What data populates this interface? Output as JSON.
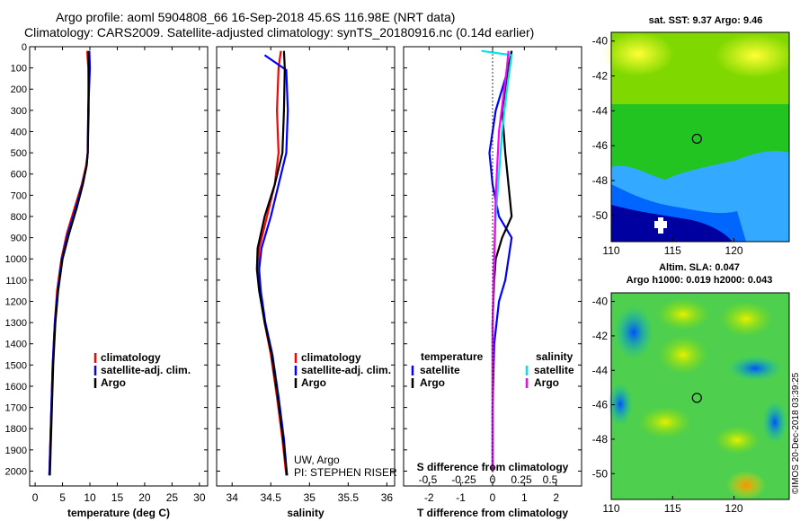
{
  "header": {
    "line1": "Argo profile: aoml 5904808_66 16-Sep-2018 45.6S 116.98E (NRT data)",
    "line2": "Climatology: CARS2009. Satellite-adjusted climatology: synTS_20180916.nc (0.14d earlier)"
  },
  "colors": {
    "climatology": "#ff0000",
    "satellite": "#0000ff",
    "argo": "#000000",
    "salinity_sat": "#00e5e5",
    "salinity_argo": "#ff00ff"
  },
  "chart_data": [
    {
      "type": "line",
      "name": "temperature-profile",
      "xlabel": "temperature (deg C)",
      "ylabel": "",
      "xlim": [
        -1,
        31.5
      ],
      "ylim": [
        2070,
        0
      ],
      "xticks": [
        "0",
        "5",
        "10",
        "15",
        "20",
        "25",
        "30"
      ],
      "yticks": [
        "0",
        "100",
        "200",
        "300",
        "400",
        "500",
        "600",
        "700",
        "800",
        "900",
        "1000",
        "1100",
        "1200",
        "1300",
        "1400",
        "1500",
        "1600",
        "1700",
        "1800",
        "1900",
        "2000"
      ],
      "legend": {
        "items": [
          "climatology",
          "satellite-adj. clim.",
          "Argo"
        ],
        "placement": "lower-right"
      },
      "series": [
        {
          "name": "climatology",
          "color": "#ff0000",
          "x": [
            9.5,
            9.7,
            9.8,
            9.6,
            9.3,
            8.5,
            7.2,
            5.8,
            4.8,
            4.0,
            3.6,
            3.2,
            2.9,
            2.6
          ],
          "y": [
            20,
            100,
            300,
            500,
            560,
            650,
            760,
            880,
            1000,
            1150,
            1300,
            1500,
            1750,
            2020
          ]
        },
        {
          "name": "satellite-adj. clim.",
          "color": "#0000ff",
          "x": [
            9.9,
            10.0,
            9.7,
            9.6,
            9.4,
            8.6,
            7.4,
            6.0,
            4.9,
            4.1,
            3.6,
            3.2,
            2.9,
            2.6
          ],
          "y": [
            20,
            100,
            300,
            500,
            560,
            650,
            760,
            880,
            1000,
            1150,
            1300,
            1500,
            1750,
            2020
          ]
        },
        {
          "name": "Argo",
          "color": "#000000",
          "x": [
            9.7,
            9.8,
            9.7,
            9.6,
            9.4,
            8.7,
            7.6,
            6.2,
            5.0,
            4.2,
            3.7,
            3.3,
            3.0,
            2.7
          ],
          "y": [
            20,
            100,
            300,
            500,
            560,
            650,
            760,
            880,
            1000,
            1150,
            1300,
            1500,
            1750,
            2020
          ]
        }
      ]
    },
    {
      "type": "line",
      "name": "salinity-profile",
      "xlabel": "salinity",
      "xlim": [
        33.8,
        36.1
      ],
      "ylim": [
        2070,
        0
      ],
      "xticks": [
        "34",
        "34.5",
        "35",
        "35.5",
        "36"
      ],
      "legend": {
        "items": [
          "climatology",
          "satellite-adj. clim.",
          "Argo"
        ],
        "placement": "lower-right"
      },
      "annotation": [
        "UW, Argo",
        "PI: STEPHEN RISER"
      ],
      "series": [
        {
          "name": "climatology",
          "color": "#ff0000",
          "x": [
            34.63,
            34.6,
            34.58,
            34.6,
            34.55,
            34.45,
            34.35,
            34.33,
            34.36,
            34.42,
            34.5,
            34.58,
            34.65,
            34.7
          ],
          "y": [
            20,
            100,
            300,
            500,
            650,
            800,
            950,
            1050,
            1150,
            1300,
            1450,
            1650,
            1850,
            2020
          ]
        },
        {
          "name": "satellite-adj. clim.",
          "color": "#0000ff",
          "x": [
            34.42,
            34.7,
            34.72,
            34.7,
            34.6,
            34.5,
            34.38,
            34.35,
            34.37,
            34.43,
            34.52,
            34.6,
            34.67,
            34.71
          ],
          "y": [
            40,
            110,
            300,
            500,
            650,
            800,
            950,
            1050,
            1150,
            1300,
            1450,
            1650,
            1850,
            2020
          ]
        },
        {
          "name": "Argo",
          "color": "#000000",
          "x": [
            34.67,
            34.68,
            34.67,
            34.65,
            34.55,
            34.42,
            34.33,
            34.32,
            34.35,
            34.42,
            34.51,
            34.59,
            34.66,
            34.71
          ],
          "y": [
            20,
            100,
            300,
            500,
            650,
            800,
            950,
            1050,
            1150,
            1300,
            1450,
            1650,
            1850,
            2020
          ]
        }
      ]
    },
    {
      "type": "line",
      "name": "difference-profile",
      "xlabel": "T difference from climatology",
      "xlabel_top": "S difference from climatology",
      "xlim": [
        -2.8,
        2.8
      ],
      "ylim": [
        2070,
        0
      ],
      "xticks": [
        "-2",
        "-1",
        "0",
        "1",
        "2"
      ],
      "xticks_top": [
        "-0.5",
        "-0.25",
        "0",
        "0.25",
        "0.5"
      ],
      "legend": {
        "temperature_title": "temperature",
        "salinity_title": "salinity",
        "items": [
          "satellite",
          "Argo",
          "satellite",
          "Argo"
        ]
      },
      "series": [
        {
          "name": "T satellite",
          "color": "#0000ff",
          "x": [
            0.6,
            0.5,
            0.1,
            -0.1,
            0.0,
            0.2,
            0.6,
            0.5,
            0.4,
            0.2,
            0.05,
            0.0,
            0.0
          ],
          "y": [
            20,
            100,
            300,
            500,
            650,
            800,
            900,
            1000,
            1100,
            1200,
            1400,
            1700,
            2000
          ]
        },
        {
          "name": "T Argo",
          "color": "#000000",
          "x": [
            0.6,
            0.5,
            0.3,
            0.4,
            0.5,
            0.6,
            0.3,
            0.1,
            0.05,
            0.0,
            0.0,
            0.0
          ],
          "y": [
            20,
            100,
            300,
            500,
            650,
            800,
            900,
            1000,
            1100,
            1300,
            1600,
            2000
          ]
        },
        {
          "name": "S satellite",
          "color": "#00e5e5",
          "x": [
            -0.35,
            0.6,
            0.45,
            0.3,
            0.2,
            0.1,
            0.05,
            0.0,
            0.0,
            0.0
          ],
          "y": [
            20,
            40,
            200,
            400,
            600,
            800,
            1000,
            1300,
            1600,
            2000
          ]
        },
        {
          "name": "S Argo",
          "color": "#ff00ff",
          "x": [
            0.5,
            0.45,
            0.2,
            0.1,
            0.05,
            0.0,
            0.0,
            0.0
          ],
          "y": [
            20,
            100,
            400,
            700,
            1000,
            1300,
            1600,
            2000
          ]
        }
      ]
    },
    {
      "type": "heatmap",
      "name": "sst-map",
      "title": "sat. SST: 9.37 Argo: 9.46",
      "xticks": [
        "110",
        "115",
        "120"
      ],
      "yticks": [
        "-40",
        "-42",
        "-44",
        "-46",
        "-48",
        "-50"
      ],
      "xlim": [
        110,
        124.5
      ],
      "ylim": [
        -51.5,
        -39.5
      ],
      "marker": {
        "lon": 116.98,
        "lat": -45.6
      }
    },
    {
      "type": "heatmap",
      "name": "sla-map",
      "title_line1": "Altim. SLA: 0.047",
      "title_line2": "Argo h1000: 0.019 h2000: 0.043",
      "xticks": [
        "110",
        "115",
        "120"
      ],
      "yticks": [
        "-40",
        "-42",
        "-44",
        "-46",
        "-48",
        "-50"
      ],
      "xlim": [
        110,
        124.5
      ],
      "ylim": [
        -51.5,
        -39.5
      ],
      "marker": {
        "lon": 116.98,
        "lat": -45.6
      }
    }
  ],
  "footer_stamp": "©IMOS 20-Dec-2018 03:39:25"
}
